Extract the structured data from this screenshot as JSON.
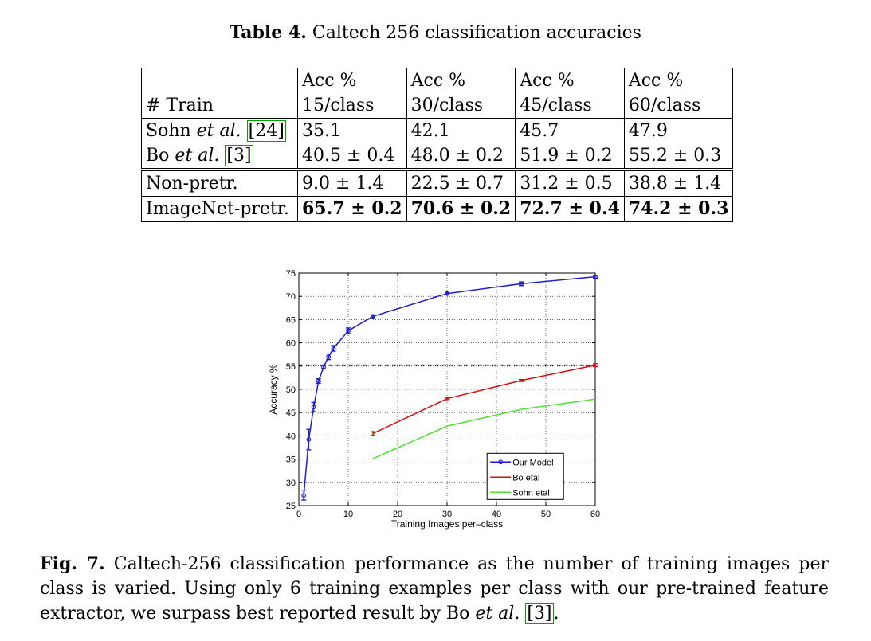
{
  "table": {
    "caption_label": "Table 4.",
    "caption_text": "Caltech 256 classification accuracies",
    "header": {
      "col0": "# Train",
      "cols": [
        {
          "l1": "Acc %",
          "l2": "15/class"
        },
        {
          "l1": "Acc %",
          "l2": "30/class"
        },
        {
          "l1": "Acc %",
          "l2": "45/class"
        },
        {
          "l1": "Acc %",
          "l2": "60/class"
        }
      ]
    },
    "rows": [
      {
        "name": "Sohn",
        "etal": "et al.",
        "ref": "24",
        "values": [
          "35.1",
          "42.1",
          "45.7",
          "47.9"
        ]
      },
      {
        "name": "Bo",
        "etal": "et al.",
        "ref": "3",
        "values": [
          "40.5 ± 0.4",
          "48.0 ± 0.2",
          "51.9 ± 0.2",
          "55.2 ± 0.3"
        ]
      },
      {
        "name": "Non-pretr.",
        "values": [
          "9.0 ± 1.4",
          "22.5 ± 0.7",
          "31.2 ± 0.5",
          "38.8 ± 1.4"
        ]
      },
      {
        "name": "ImageNet-pretr.",
        "values": [
          "65.7 ± 0.2",
          "70.6 ± 0.2",
          "72.7 ± 0.4",
          "74.2 ± 0.3"
        ]
      }
    ]
  },
  "figure": {
    "caption_label": "Fig. 7.",
    "caption_text": "Caltech-256 classification performance as the number of training images per class is varied. Using only 6 training examples per class with our pre-trained feature extractor, we surpass best reported result by Bo",
    "caption_etal": "et al.",
    "caption_ref": "3",
    "caption_end": "."
  },
  "chart_data": {
    "type": "line",
    "xlabel": "Training Images per–class",
    "ylabel": "Accuracy %",
    "xlim": [
      0,
      60
    ],
    "ylim": [
      25,
      75
    ],
    "xticks": [
      "0",
      "10",
      "20",
      "30",
      "40",
      "50",
      "60"
    ],
    "yticks": [
      "25",
      "30",
      "35",
      "40",
      "45",
      "50",
      "55",
      "60",
      "65",
      "70",
      "75"
    ],
    "grid": true,
    "legend_position": "bottom-right",
    "reference_line": {
      "y": 55.2,
      "style": "dashed",
      "color": "#000000"
    },
    "series": [
      {
        "name": "Our Model",
        "color": "#1f1fd0",
        "marker": "circle",
        "x": [
          1,
          2,
          3,
          4,
          5,
          6,
          7,
          10,
          15,
          30,
          45,
          60
        ],
        "y": [
          27.2,
          39.2,
          46.2,
          51.8,
          54.8,
          57.0,
          58.8,
          62.6,
          65.7,
          70.6,
          72.7,
          74.2
        ],
        "err": [
          1.0,
          2.2,
          1.0,
          0.5,
          0.4,
          0.6,
          0.6,
          0.6,
          0.2,
          0.2,
          0.4,
          0.3
        ]
      },
      {
        "name": "Bo etal",
        "color": "#d01010",
        "x": [
          15,
          30,
          45,
          60
        ],
        "y": [
          40.5,
          48.0,
          51.9,
          55.2
        ],
        "err": [
          0.4,
          0.2,
          0.2,
          0.3
        ]
      },
      {
        "name": "Sohn etal",
        "color": "#50e030",
        "x": [
          15,
          30,
          45,
          60
        ],
        "y": [
          35.1,
          42.1,
          45.7,
          47.9
        ]
      }
    ]
  }
}
